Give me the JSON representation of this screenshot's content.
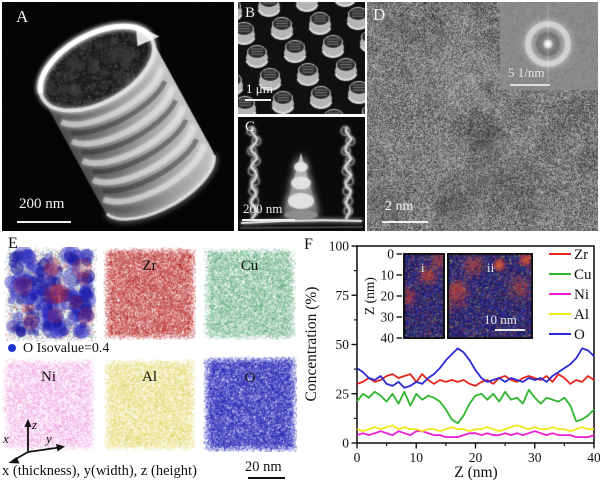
{
  "panels": {
    "a": {
      "label": "A",
      "scalebar": "200 nm"
    },
    "b": {
      "label": "B",
      "scalebar": "1 μm"
    },
    "c": {
      "label": "C",
      "scalebar": "200 nm"
    },
    "d": {
      "label": "D",
      "scalebar": "2 nm",
      "fft_scalebar": "5 1/nm"
    },
    "e": {
      "label": "E",
      "isovalue_note": "O Isovalue=0.4",
      "isovalue_bullet_color": "#2233cc",
      "axes_note": "x (thickness), y(width), z (height)",
      "scalebar": "20 nm",
      "axis_x": "x",
      "axis_y": "y",
      "axis_z": "z",
      "maps": [
        {
          "id": "combined",
          "label": "",
          "colors": [
            "#2424c0",
            "#c32424",
            "#3d9e63"
          ]
        },
        {
          "id": "zr",
          "label": "Zr",
          "color": "#c32424"
        },
        {
          "id": "cu",
          "label": "Cu",
          "color": "#3d9e63"
        },
        {
          "id": "ni",
          "label": "Ni",
          "color": "#ea79d5"
        },
        {
          "id": "al",
          "label": "Al",
          "color": "#ddd24a"
        },
        {
          "id": "o",
          "label": "O",
          "color": "#2424c0"
        }
      ]
    },
    "f": {
      "label": "F",
      "inset": {
        "axis_label": "Z (nm)",
        "ticks": [
          0,
          10,
          20,
          30,
          40
        ],
        "label_i": "i",
        "label_ii": "ii",
        "scalebar": "10 nm"
      }
    }
  },
  "chart_data": {
    "type": "line",
    "title": "",
    "xlabel": "Z (nm)",
    "ylabel": "Concentration (%)",
    "xlim": [
      0,
      40
    ],
    "ylim": [
      0,
      100
    ],
    "xticks": [
      0,
      10,
      20,
      30,
      40
    ],
    "yticks": [
      0,
      25,
      50,
      75,
      100
    ],
    "grid": false,
    "legend_position": "inside-top-right",
    "x": [
      0,
      1,
      2,
      3,
      4,
      5,
      6,
      7,
      8,
      9,
      10,
      11,
      12,
      13,
      14,
      15,
      16,
      17,
      18,
      19,
      20,
      21,
      22,
      23,
      24,
      25,
      26,
      27,
      28,
      29,
      30,
      31,
      32,
      33,
      34,
      35,
      36,
      37,
      38,
      39,
      40
    ],
    "series": [
      {
        "name": "Zr",
        "color": "#e8251c",
        "values": [
          30,
          31,
          33,
          31,
          32,
          34,
          35,
          33,
          34,
          35,
          31,
          35,
          32,
          30,
          32,
          31,
          32,
          31,
          32,
          30,
          29,
          31,
          32,
          30,
          33,
          34,
          32,
          31,
          33,
          34,
          33,
          32,
          34,
          31,
          35,
          33,
          30,
          32,
          31,
          34,
          32
        ]
      },
      {
        "name": "Cu",
        "color": "#2eb62e",
        "values": [
          21,
          25,
          23,
          26,
          24,
          21,
          25,
          20,
          26,
          19,
          25,
          22,
          24,
          23,
          21,
          17,
          12,
          10,
          14,
          20,
          24,
          25,
          22,
          25,
          21,
          26,
          22,
          23,
          20,
          27,
          23,
          20,
          23,
          22,
          21,
          23,
          19,
          11,
          12,
          14,
          17
        ]
      },
      {
        "name": "Ni",
        "color": "#ee1dd2",
        "values": [
          4,
          5,
          4,
          5,
          6,
          5,
          4,
          6,
          5,
          4,
          6,
          6,
          5,
          4,
          4,
          3,
          3,
          3,
          4,
          5,
          5,
          4,
          5,
          4,
          4,
          5,
          4,
          5,
          4,
          5,
          6,
          5,
          4,
          5,
          4,
          4,
          4,
          3,
          3,
          3,
          4
        ]
      },
      {
        "name": "Al",
        "color": "#f2e719",
        "values": [
          7,
          6,
          7,
          8,
          7,
          8,
          9,
          7,
          8,
          7,
          7,
          6,
          7,
          7,
          6,
          7,
          8,
          7,
          7,
          6,
          7,
          7,
          8,
          7,
          6,
          7,
          8,
          9,
          8,
          7,
          8,
          7,
          7,
          8,
          7,
          7,
          6,
          7,
          8,
          7,
          7
        ]
      },
      {
        "name": "O",
        "color": "#2b2bd5",
        "values": [
          38,
          36,
          33,
          32,
          34,
          30,
          29,
          31,
          28,
          29,
          31,
          30,
          33,
          35,
          38,
          42,
          45,
          48,
          46,
          42,
          37,
          33,
          31,
          32,
          33,
          31,
          33,
          32,
          31,
          33,
          32,
          33,
          31,
          34,
          36,
          38,
          40,
          43,
          48,
          47,
          44
        ]
      }
    ]
  }
}
